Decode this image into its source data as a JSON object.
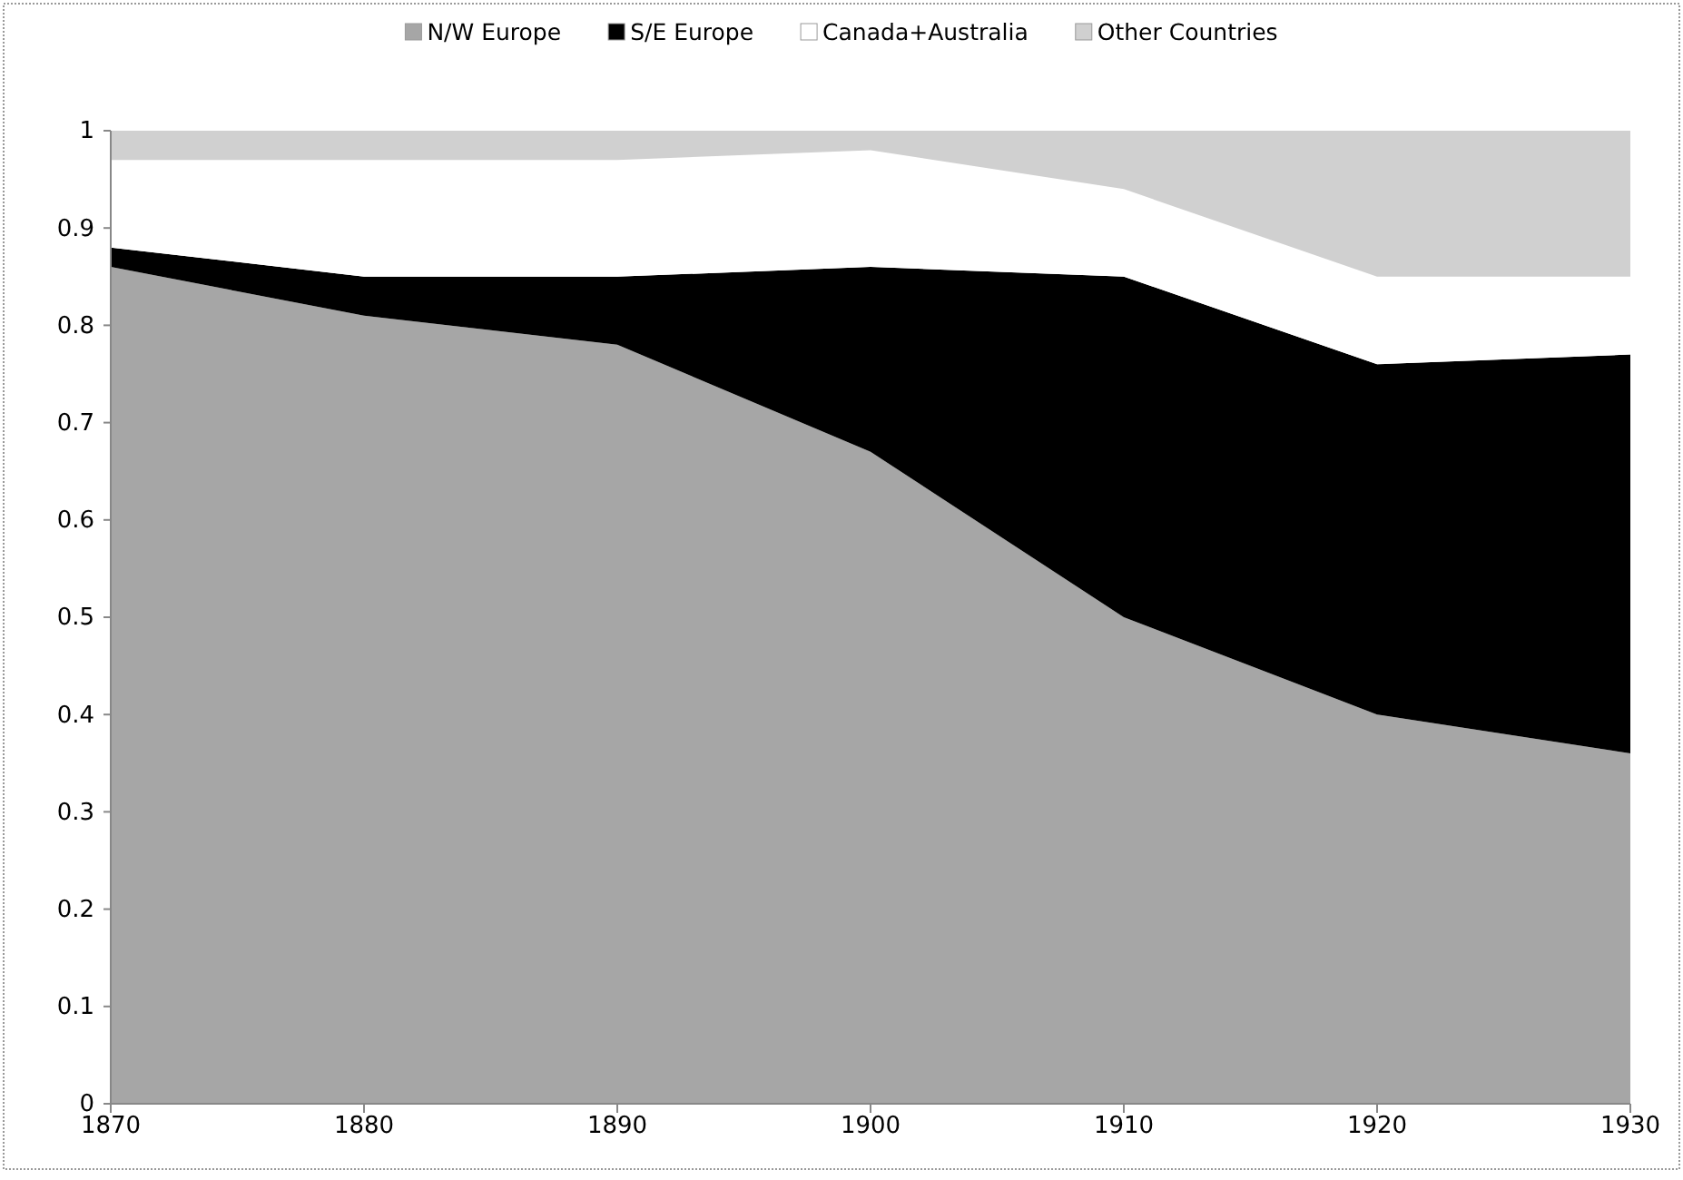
{
  "chart_data": {
    "type": "area",
    "stacked": true,
    "x": [
      1870,
      1880,
      1890,
      1900,
      1910,
      1920,
      1930
    ],
    "xlim": [
      1870,
      1930
    ],
    "xticks": [
      1870,
      1880,
      1890,
      1900,
      1910,
      1920,
      1930
    ],
    "ylim": [
      0,
      1
    ],
    "yticks": [
      0,
      0.1,
      0.2,
      0.3,
      0.4,
      0.5,
      0.6,
      0.7,
      0.8,
      0.9,
      1
    ],
    "legend": "top",
    "series": [
      {
        "name": "N/W Europe",
        "color": "#a6a6a6",
        "values": [
          0.86,
          0.81,
          0.78,
          0.67,
          0.5,
          0.4,
          0.36
        ]
      },
      {
        "name": "S/E Europe",
        "color": "#000000",
        "values": [
          0.02,
          0.04,
          0.07,
          0.19,
          0.35,
          0.36,
          0.41
        ]
      },
      {
        "name": "Canada+Australia",
        "color": "#ffffff",
        "values": [
          0.09,
          0.12,
          0.12,
          0.12,
          0.09,
          0.09,
          0.08
        ]
      },
      {
        "name": "Other Countries",
        "color": "#d0d0d0",
        "values": [
          0.03,
          0.03,
          0.03,
          0.02,
          0.06,
          0.15,
          0.15
        ]
      }
    ]
  }
}
